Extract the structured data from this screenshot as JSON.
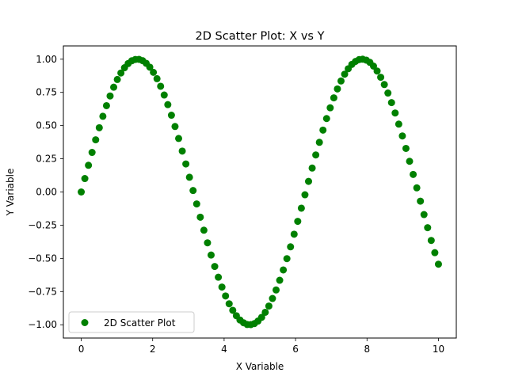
{
  "chart_data": {
    "type": "scatter",
    "title": "2D Scatter Plot: X vs Y",
    "xlabel": "X Variable",
    "ylabel": "Y Variable",
    "xlim": [
      -0.5,
      10.5
    ],
    "ylim": [
      -1.1,
      1.1
    ],
    "xticks": [
      0,
      2,
      4,
      6,
      8,
      10
    ],
    "xtick_labels": [
      "0",
      "2",
      "4",
      "6",
      "8",
      "10"
    ],
    "yticks": [
      -1.0,
      -0.75,
      -0.5,
      -0.25,
      0.0,
      0.25,
      0.5,
      0.75,
      1.0
    ],
    "ytick_labels": [
      "−1.00",
      "−0.75",
      "−0.50",
      "−0.25",
      "0.00",
      "0.25",
      "0.50",
      "0.75",
      "1.00"
    ],
    "grid": false,
    "legend_position": "bottom-left",
    "series": [
      {
        "name": "2D Scatter Plot",
        "color": "#008000",
        "x": [
          0.0,
          0.101,
          0.202,
          0.303,
          0.404,
          0.505,
          0.606,
          0.707,
          0.808,
          0.909,
          1.01,
          1.111,
          1.212,
          1.313,
          1.414,
          1.515,
          1.616,
          1.717,
          1.818,
          1.919,
          2.02,
          2.121,
          2.222,
          2.323,
          2.424,
          2.525,
          2.626,
          2.727,
          2.828,
          2.929,
          3.03,
          3.131,
          3.232,
          3.333,
          3.434,
          3.535,
          3.636,
          3.737,
          3.838,
          3.939,
          4.04,
          4.141,
          4.242,
          4.343,
          4.444,
          4.545,
          4.646,
          4.747,
          4.848,
          4.949,
          5.051,
          5.152,
          5.253,
          5.354,
          5.455,
          5.556,
          5.657,
          5.758,
          5.859,
          5.96,
          6.061,
          6.162,
          6.263,
          6.364,
          6.465,
          6.566,
          6.667,
          6.768,
          6.869,
          6.97,
          7.071,
          7.172,
          7.273,
          7.374,
          7.475,
          7.576,
          7.677,
          7.778,
          7.879,
          7.98,
          8.081,
          8.182,
          8.283,
          8.384,
          8.485,
          8.586,
          8.687,
          8.788,
          8.889,
          8.99,
          9.091,
          9.192,
          9.293,
          9.394,
          9.495,
          9.596,
          9.697,
          9.798,
          9.899,
          10.0
        ],
        "y": [
          0.0,
          0.101,
          0.201,
          0.298,
          0.393,
          0.484,
          0.57,
          0.65,
          0.723,
          0.789,
          0.847,
          0.896,
          0.936,
          0.967,
          0.988,
          0.998,
          0.999,
          0.989,
          0.969,
          0.94,
          0.901,
          0.853,
          0.796,
          0.73,
          0.658,
          0.578,
          0.493,
          0.403,
          0.308,
          0.211,
          0.111,
          0.011,
          -0.09,
          -0.19,
          -0.288,
          -0.383,
          -0.475,
          -0.561,
          -0.642,
          -0.716,
          -0.783,
          -0.842,
          -0.891,
          -0.932,
          -0.964,
          -0.985,
          -0.998,
          -0.999,
          -0.991,
          -0.972,
          -0.944,
          -0.906,
          -0.859,
          -0.802,
          -0.738,
          -0.665,
          -0.587,
          -0.502,
          -0.413,
          -0.318,
          -0.221,
          -0.122,
          -0.021,
          0.08,
          0.18,
          0.279,
          0.374,
          0.466,
          0.553,
          0.634,
          0.709,
          0.776,
          0.836,
          0.887,
          0.928,
          0.961,
          0.983,
          0.997,
          1.0,
          0.993,
          0.976,
          0.948,
          0.911,
          0.864,
          0.809,
          0.745,
          0.673,
          0.595,
          0.511,
          0.422,
          0.328,
          0.231,
          0.132,
          0.031,
          -0.069,
          -0.17,
          -0.269,
          -0.365,
          -0.457,
          -0.544
        ]
      }
    ]
  }
}
